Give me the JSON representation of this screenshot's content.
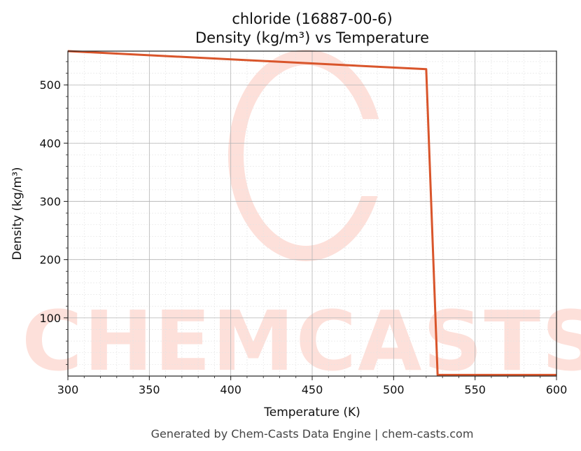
{
  "chart_data": {
    "type": "line",
    "title": "chloride (16887-00-6)",
    "subtitle": "Density (kg/m³) vs Temperature",
    "xlabel": "Temperature (K)",
    "ylabel": "Density (kg/m³)",
    "xlim": [
      300,
      600
    ],
    "ylim": [
      0,
      558
    ],
    "x_ticks": [
      300,
      350,
      400,
      450,
      500,
      550,
      600
    ],
    "y_ticks": [
      100,
      200,
      300,
      400,
      500
    ],
    "grid": true,
    "series": [
      {
        "color": "#d9552b",
        "x": [
          300,
          520,
          527,
          600
        ],
        "y": [
          558,
          527,
          2,
          2
        ]
      }
    ]
  },
  "watermark": "CHEMCASTS",
  "footer": "Generated by Chem-Casts Data Engine | chem-casts.com"
}
